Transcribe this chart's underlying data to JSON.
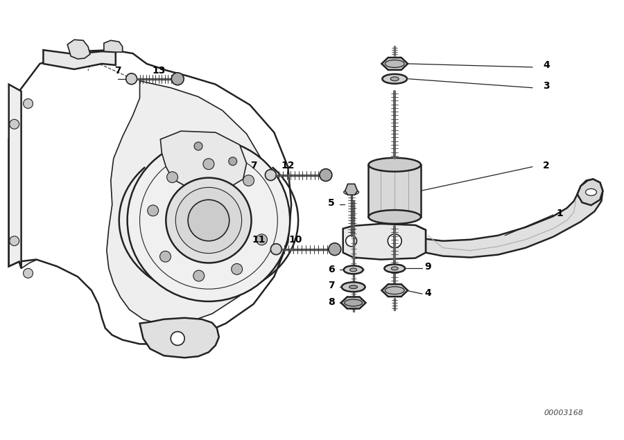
{
  "background_color": "#ffffff",
  "line_color": "#222222",
  "label_color": "#000000",
  "diagram_id": "00003168",
  "fig_width": 9.0,
  "fig_height": 6.35,
  "dpi": 100
}
